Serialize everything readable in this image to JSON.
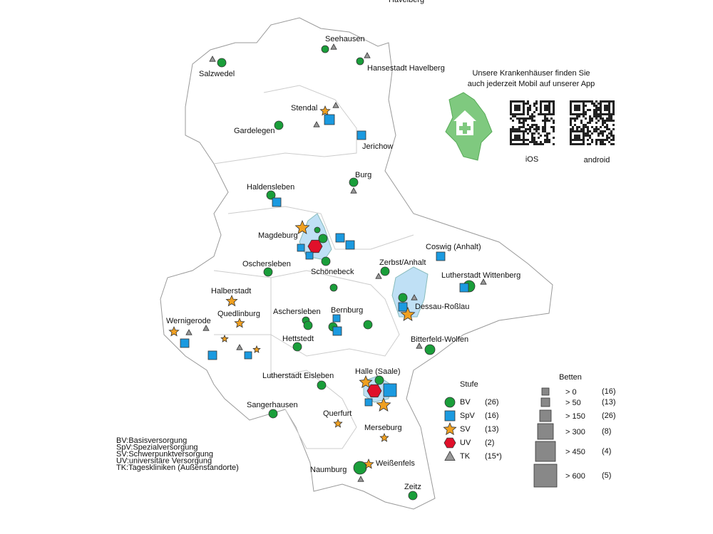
{
  "map": {
    "cities": [
      "Havelberg",
      "Seehausen",
      "Salzwedel",
      "Hansestadt Havelberg",
      "Stendal",
      "Gardelegen",
      "Jerichow",
      "Burg",
      "Haldensleben",
      "Magdeburg",
      "Coswig (Anhalt)",
      "Zerbst/Anhalt",
      "Oschersleben",
      "Schönebeck",
      "Lutherstadt Wittenberg",
      "Halberstadt",
      "Dessau-Roßlau",
      "Quedlinburg",
      "Aschersleben",
      "Bernburg",
      "Wernigerode",
      "Hettstedt",
      "Bitterfeld-Wolfen",
      "Lutherstadt Eisleben",
      "Halle (Saale)",
      "Sangerhausen",
      "Querfurt",
      "Merseburg",
      "Weißenfels",
      "Naumburg",
      "Zeitz"
    ],
    "app": {
      "lines": [
        "Unsere Krankenhäuser finden Sie",
        "auch jederzeit Mobil auf unserer App"
      ],
      "ios": "iOS",
      "android": "android"
    },
    "legend_stufe": {
      "title": "Stufe",
      "entries": [
        {
          "label": "BV",
          "count": "(26)"
        },
        {
          "label": "SpV",
          "count": "(16)"
        },
        {
          "label": "SV",
          "count": "(13)"
        },
        {
          "label": "UV",
          "count": "(2)"
        },
        {
          "label": "TK",
          "count": "(15*)"
        }
      ]
    },
    "legend_betten": {
      "title": "Betten",
      "entries": [
        {
          "label": ">   0",
          "count": "(16)"
        },
        {
          "label": ">   50",
          "count": "(13)"
        },
        {
          "label": ">   150",
          "count": "(26)"
        },
        {
          "label": ">   300",
          "count": "(8)"
        },
        {
          "label": ">   450",
          "count": "(4)"
        },
        {
          "label": ">   600",
          "count": "(5)"
        }
      ]
    },
    "notes": [
      "BV:Basisversorgung",
      "SpV:Spezialversorgung",
      "SV:Schwerpunktversorgung",
      "UV:universitäre Versorgung",
      "TK:Tageskliniken (Außenstandorte)"
    ]
  }
}
